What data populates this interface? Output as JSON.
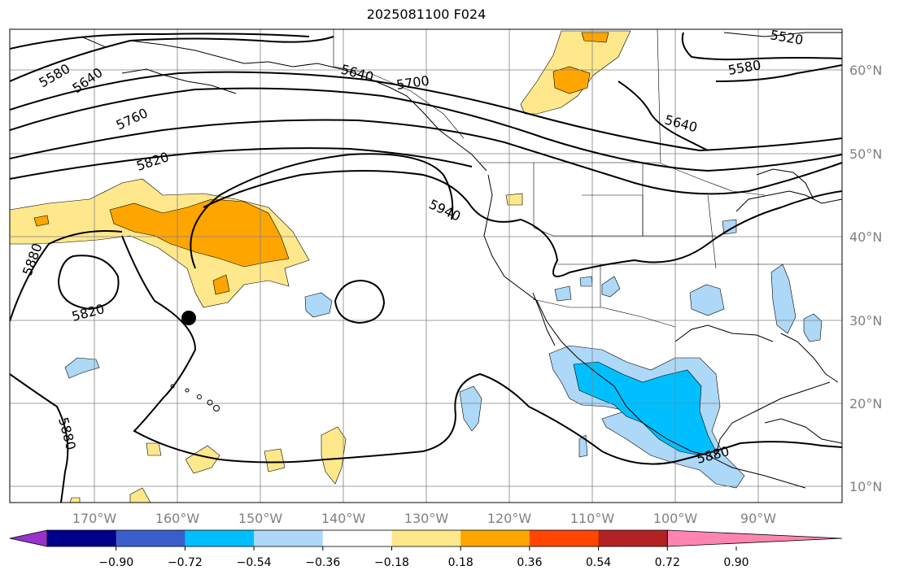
{
  "title": "2025081100 F024",
  "lat_labels": [
    "60°N",
    "50°N",
    "40°N",
    "30°N",
    "20°N",
    "10°N"
  ],
  "lon_labels": [
    "170°W",
    "160°W",
    "150°W",
    "140°W",
    "130°W",
    "120°W",
    "110°W",
    "100°W",
    "90°W"
  ],
  "colorbar": {
    "colors": [
      "#9932cc",
      "#00008b",
      "#3a5fcd",
      "#00bfff",
      "#add8f7",
      "#ffffff",
      "#ffe88c",
      "#ffa500",
      "#ff4500",
      "#b22222",
      "#ff85b0"
    ],
    "tick_labels": [
      "−0.90",
      "−0.72",
      "−0.54",
      "−0.36",
      "−0.18",
      "0.18",
      "0.36",
      "0.54",
      "0.72",
      "0.90"
    ]
  },
  "contour_labels": [
    "5580",
    "5640",
    "5760",
    "5820",
    "5880",
    "5820",
    "5640",
    "5700",
    "5940",
    "5520",
    "5580",
    "5640",
    "5880",
    "5880"
  ],
  "storm_marker": "black-circle"
}
